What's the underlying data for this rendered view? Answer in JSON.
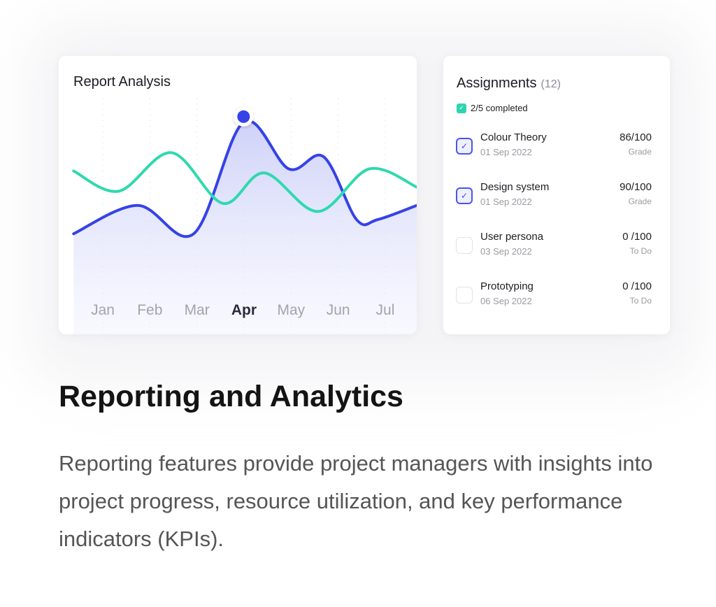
{
  "chart_data": {
    "type": "line",
    "title": "Report Analysis",
    "categories": [
      "Jan",
      "Feb",
      "Mar",
      "Apr",
      "May",
      "Jun",
      "Jul"
    ],
    "highlighted_category": "Apr",
    "ylim": [
      0,
      100
    ],
    "grid": "vertical dotted",
    "series": [
      {
        "name": "blue",
        "color": "#3542e8",
        "area": true,
        "x": [
          -0.62,
          0.74,
          1.93,
          2.99,
          3.95,
          4.69,
          5.39,
          5.84,
          6.67
        ],
        "y": [
          33,
          47,
          33,
          88,
          65,
          71,
          40,
          40,
          47
        ]
      },
      {
        "name": "teal",
        "color": "#2fd9b0",
        "area": false,
        "x": [
          -0.62,
          0.34,
          1.46,
          2.55,
          3.43,
          4.57,
          5.66,
          6.67
        ],
        "y": [
          64,
          54,
          73,
          48,
          63,
          44,
          65,
          56
        ]
      }
    ],
    "marker": {
      "series": "blue",
      "x": 2.99,
      "y": 88
    }
  },
  "assignments": {
    "title": "Assignments",
    "count": "(12)",
    "completed": "2/5 completed",
    "items": [
      {
        "name": "Colour Theory",
        "date": "01 Sep 2022",
        "score": "86/100",
        "status": "Grade",
        "checked": true
      },
      {
        "name": "Design system",
        "date": "01 Sep 2022",
        "score": "90/100",
        "status": "Grade",
        "checked": true
      },
      {
        "name": "User persona",
        "date": "03 Sep 2022",
        "score": "0 /100",
        "status": "To Do",
        "checked": false
      },
      {
        "name": "Prototyping",
        "date": "06 Sep 2022",
        "score": "0 /100",
        "status": "To Do",
        "checked": false
      }
    ]
  },
  "heading": "Reporting and Analytics",
  "description": "Reporting features provide project managers with insights into project progress, resource utilization, and key performance indicators (KPIs).",
  "check_glyph": "✓"
}
